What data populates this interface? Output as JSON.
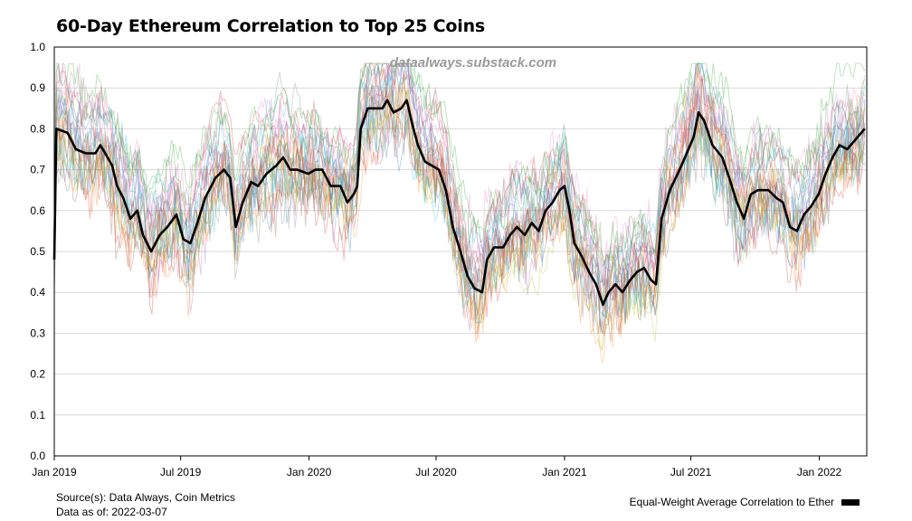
{
  "title": "60-Day Ethereum Correlation to Top 25 Coins",
  "watermark": "dataalways.substack.com",
  "footer": {
    "source": "Source(s): Data Always, Coin Metrics",
    "as_of": "Data as of: 2022-03-07"
  },
  "legend": {
    "label": "Equal-Weight Average Correlation to Ether",
    "color": "#000000",
    "position": "bottom-right"
  },
  "chart_data": {
    "type": "line",
    "title": "60-Day Ethereum Correlation to Top 25 Coins",
    "xlabel": "",
    "ylabel": "",
    "xlim": [
      "2019-01-01",
      "2022-03-10"
    ],
    "ylim": [
      0.0,
      1.0
    ],
    "grid": true,
    "x_ticks": [
      "Jan 2019",
      "Jul 2019",
      "Jan 2020",
      "Jul 2020",
      "Jan 2021",
      "Jul 2021",
      "Jan 2022"
    ],
    "y_ticks": [
      "0.0",
      "0.1",
      "0.2",
      "0.3",
      "0.4",
      "0.5",
      "0.6",
      "0.7",
      "0.8",
      "0.9",
      "1.0"
    ],
    "series": [
      {
        "name": "Equal-Weight Average Correlation to Ether",
        "color": "#000000",
        "points": [
          [
            "2019-01-01",
            0.48
          ],
          [
            "2019-01-04",
            0.8
          ],
          [
            "2019-01-20",
            0.79
          ],
          [
            "2019-02-01",
            0.75
          ],
          [
            "2019-02-15",
            0.74
          ],
          [
            "2019-03-01",
            0.74
          ],
          [
            "2019-03-08",
            0.76
          ],
          [
            "2019-03-15",
            0.74
          ],
          [
            "2019-03-25",
            0.71
          ],
          [
            "2019-04-01",
            0.66
          ],
          [
            "2019-04-10",
            0.63
          ],
          [
            "2019-04-20",
            0.58
          ],
          [
            "2019-04-30",
            0.6
          ],
          [
            "2019-05-08",
            0.54
          ],
          [
            "2019-05-20",
            0.5
          ],
          [
            "2019-06-01",
            0.54
          ],
          [
            "2019-06-12",
            0.56
          ],
          [
            "2019-06-25",
            0.59
          ],
          [
            "2019-07-05",
            0.53
          ],
          [
            "2019-07-15",
            0.52
          ],
          [
            "2019-07-25",
            0.57
          ],
          [
            "2019-08-05",
            0.63
          ],
          [
            "2019-08-20",
            0.68
          ],
          [
            "2019-09-01",
            0.7
          ],
          [
            "2019-09-10",
            0.68
          ],
          [
            "2019-09-18",
            0.56
          ],
          [
            "2019-09-28",
            0.62
          ],
          [
            "2019-10-10",
            0.67
          ],
          [
            "2019-10-20",
            0.66
          ],
          [
            "2019-11-01",
            0.69
          ],
          [
            "2019-11-15",
            0.71
          ],
          [
            "2019-11-25",
            0.73
          ],
          [
            "2019-12-05",
            0.7
          ],
          [
            "2019-12-15",
            0.7
          ],
          [
            "2019-12-31",
            0.69
          ],
          [
            "2020-01-10",
            0.7
          ],
          [
            "2020-01-20",
            0.7
          ],
          [
            "2020-02-01",
            0.66
          ],
          [
            "2020-02-15",
            0.66
          ],
          [
            "2020-02-25",
            0.62
          ],
          [
            "2020-03-05",
            0.64
          ],
          [
            "2020-03-10",
            0.66
          ],
          [
            "2020-03-15",
            0.8
          ],
          [
            "2020-03-25",
            0.85
          ],
          [
            "2020-04-15",
            0.85
          ],
          [
            "2020-04-22",
            0.87
          ],
          [
            "2020-05-01",
            0.84
          ],
          [
            "2020-05-12",
            0.85
          ],
          [
            "2020-05-20",
            0.87
          ],
          [
            "2020-05-28",
            0.81
          ],
          [
            "2020-06-05",
            0.76
          ],
          [
            "2020-06-15",
            0.72
          ],
          [
            "2020-06-25",
            0.71
          ],
          [
            "2020-07-05",
            0.7
          ],
          [
            "2020-07-15",
            0.65
          ],
          [
            "2020-07-25",
            0.56
          ],
          [
            "2020-08-05",
            0.5
          ],
          [
            "2020-08-15",
            0.44
          ],
          [
            "2020-08-25",
            0.41
          ],
          [
            "2020-09-05",
            0.4
          ],
          [
            "2020-09-12",
            0.48
          ],
          [
            "2020-09-22",
            0.51
          ],
          [
            "2020-10-05",
            0.51
          ],
          [
            "2020-10-15",
            0.54
          ],
          [
            "2020-10-25",
            0.56
          ],
          [
            "2020-11-05",
            0.54
          ],
          [
            "2020-11-15",
            0.57
          ],
          [
            "2020-11-25",
            0.55
          ],
          [
            "2020-12-05",
            0.6
          ],
          [
            "2020-12-15",
            0.62
          ],
          [
            "2020-12-25",
            0.65
          ],
          [
            "2021-01-01",
            0.66
          ],
          [
            "2021-01-08",
            0.6
          ],
          [
            "2021-01-15",
            0.52
          ],
          [
            "2021-01-25",
            0.49
          ],
          [
            "2021-02-05",
            0.45
          ],
          [
            "2021-02-15",
            0.42
          ],
          [
            "2021-02-25",
            0.37
          ],
          [
            "2021-03-05",
            0.4
          ],
          [
            "2021-03-15",
            0.42
          ],
          [
            "2021-03-25",
            0.4
          ],
          [
            "2021-04-05",
            0.43
          ],
          [
            "2021-04-15",
            0.45
          ],
          [
            "2021-04-25",
            0.46
          ],
          [
            "2021-05-05",
            0.43
          ],
          [
            "2021-05-12",
            0.42
          ],
          [
            "2021-05-20",
            0.58
          ],
          [
            "2021-06-01",
            0.65
          ],
          [
            "2021-06-15",
            0.7
          ],
          [
            "2021-06-25",
            0.74
          ],
          [
            "2021-07-05",
            0.78
          ],
          [
            "2021-07-12",
            0.84
          ],
          [
            "2021-07-20",
            0.82
          ],
          [
            "2021-08-01",
            0.76
          ],
          [
            "2021-08-15",
            0.73
          ],
          [
            "2021-08-25",
            0.68
          ],
          [
            "2021-09-05",
            0.62
          ],
          [
            "2021-09-15",
            0.58
          ],
          [
            "2021-09-25",
            0.64
          ],
          [
            "2021-10-05",
            0.65
          ],
          [
            "2021-10-20",
            0.65
          ],
          [
            "2021-11-01",
            0.63
          ],
          [
            "2021-11-10",
            0.62
          ],
          [
            "2021-11-20",
            0.56
          ],
          [
            "2021-11-30",
            0.55
          ],
          [
            "2021-12-10",
            0.59
          ],
          [
            "2021-12-20",
            0.61
          ],
          [
            "2021-12-31",
            0.64
          ],
          [
            "2022-01-10",
            0.69
          ],
          [
            "2022-01-20",
            0.73
          ],
          [
            "2022-01-30",
            0.76
          ],
          [
            "2022-02-10",
            0.75
          ],
          [
            "2022-02-20",
            0.77
          ],
          [
            "2022-03-07",
            0.8
          ]
        ]
      }
    ],
    "background_series_count": 24,
    "background_series_colors": [
      "#1f77b4",
      "#ff7f0e",
      "#2ca02c",
      "#d62728",
      "#9467bd",
      "#8c564b",
      "#e377c2",
      "#7f7f7f",
      "#bcbd22",
      "#17becf"
    ]
  }
}
